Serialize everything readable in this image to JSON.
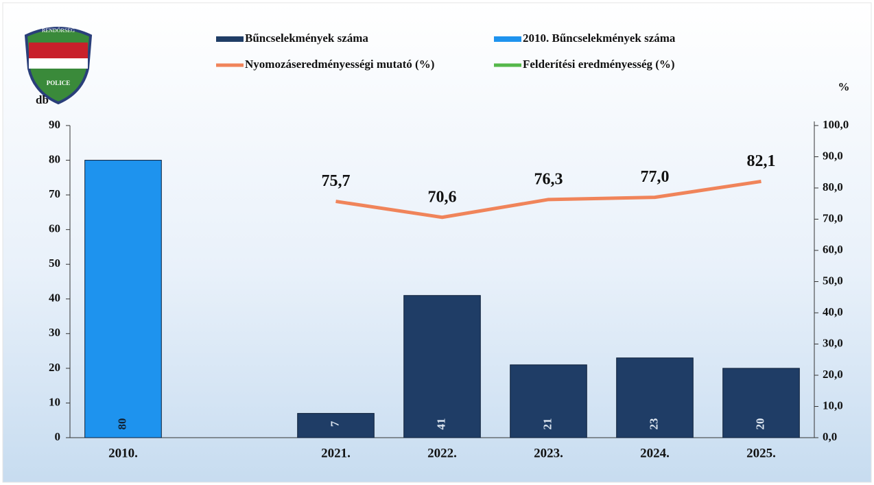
{
  "logo": {
    "top": "RENDŐRSÉG",
    "bottom": "POLICE"
  },
  "chart_data": {
    "type": "bar",
    "y_label": "db",
    "y2_label": "%",
    "categories": [
      "2010.",
      null,
      "2021.",
      "2022.",
      "2023.",
      "2024.",
      "2025."
    ],
    "series": [
      {
        "name": "Bűncselekmények száma",
        "type": "bar",
        "color": "#1f3d66",
        "values": [
          null,
          null,
          7,
          41,
          21,
          23,
          20
        ]
      },
      {
        "name": "2010. Bűncselekmények száma",
        "type": "bar",
        "color": "#1e93ee",
        "values": [
          80,
          null,
          null,
          null,
          null,
          null,
          null
        ]
      },
      {
        "name": "Nyomozáseredményességi mutató (%)",
        "type": "line",
        "axis": "y2",
        "color": "#f0845a",
        "values": [
          null,
          null,
          75.7,
          70.6,
          76.3,
          77.0,
          82.1
        ],
        "value_labels": [
          null,
          null,
          "75,7",
          "70,6",
          "76,3",
          "77,0",
          "82,1"
        ]
      },
      {
        "name": "Felderítési eredményesség (%)",
        "type": "line",
        "axis": "y2",
        "color": "#55b84a",
        "values": [
          null,
          null,
          null,
          null,
          null,
          null,
          null
        ]
      }
    ],
    "ylim": [
      0,
      90
    ],
    "yticks": [
      0,
      10,
      20,
      30,
      40,
      50,
      60,
      70,
      80,
      90
    ],
    "y2lim": [
      0,
      100
    ],
    "y2ticks": [
      {
        "value": 0,
        "label": "0,0"
      },
      {
        "value": 10,
        "label": "10,0"
      },
      {
        "value": 20,
        "label": "20,0"
      },
      {
        "value": 30,
        "label": "30,0"
      },
      {
        "value": 40,
        "label": "40,0"
      },
      {
        "value": 50,
        "label": "50,0"
      },
      {
        "value": 60,
        "label": "60,0"
      },
      {
        "value": 70,
        "label": "70,0"
      },
      {
        "value": 80,
        "label": "80,0"
      },
      {
        "value": 90,
        "label": "90,0"
      },
      {
        "value": 100,
        "label": "100,0"
      }
    ]
  }
}
